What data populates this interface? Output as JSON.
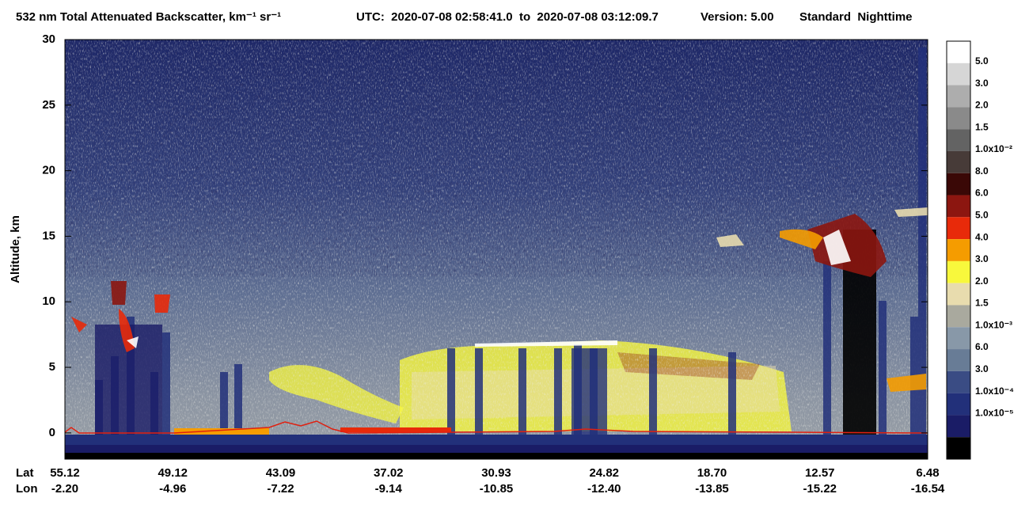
{
  "chart_data": {
    "type": "curtain",
    "title": "532 nm Total Attenuated Backscatter, km⁻¹ sr⁻¹",
    "utc": "UTC:  2020-07-08 02:58:41.0  to  2020-07-08 03:12:09.7",
    "version": "Version: 5.00",
    "mode": "Standard  Nighttime",
    "y_label": "Altitude, km",
    "ylim": [
      -2,
      30
    ],
    "yticks": [
      0,
      5,
      10,
      15,
      20,
      25,
      30
    ],
    "x_rows": [
      {
        "name": "Lat",
        "labels": [
          "55.12",
          "49.12",
          "43.09",
          "37.02",
          "30.93",
          "24.82",
          "18.70",
          "12.57",
          "6.48"
        ]
      },
      {
        "name": "Lon",
        "labels": [
          "-2.20",
          "-4.96",
          "-7.22",
          "-9.14",
          "-10.85",
          "-12.40",
          "-13.85",
          "-15.22",
          "-16.54"
        ]
      }
    ],
    "colorbar": {
      "colors": [
        "#ffffff",
        "#d6d6d6",
        "#adadad",
        "#8a8a8a",
        "#636363",
        "#473b38",
        "#3a0806",
        "#8c1610",
        "#e82a0a",
        "#f59c00",
        "#f8f83c",
        "#e8dcae",
        "#a9a99e",
        "#8898a8",
        "#687c96",
        "#3a4c84",
        "#22307a",
        "#1a1c66",
        "#000000"
      ],
      "labels": [
        "5.0",
        "3.0",
        "2.0",
        "1.5",
        "1.0x10⁻²",
        "8.0",
        "6.0",
        "5.0",
        "4.0",
        "3.0",
        "2.0",
        "1.5",
        "1.0x10⁻³",
        "6.0",
        "3.0",
        "1.0x10⁻⁴",
        "1.0x10⁻⁵"
      ]
    }
  }
}
